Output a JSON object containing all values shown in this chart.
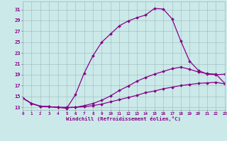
{
  "xlabel": "Windchill (Refroidissement éolien,°C)",
  "background_color": "#cbe9e9",
  "line_color": "#880088",
  "xlim": [
    0,
    23
  ],
  "ylim": [
    12.5,
    32.5
  ],
  "xticks": [
    0,
    1,
    2,
    3,
    4,
    5,
    6,
    7,
    8,
    9,
    10,
    11,
    12,
    13,
    14,
    15,
    16,
    17,
    18,
    19,
    20,
    21,
    22,
    23
  ],
  "yticks": [
    13,
    15,
    17,
    19,
    21,
    23,
    25,
    27,
    29,
    31
  ],
  "curve1_x": [
    0,
    1,
    2,
    3,
    4,
    5,
    6,
    7,
    8,
    9,
    10,
    11,
    12,
    13,
    14,
    15,
    16,
    17,
    18,
    19,
    20,
    21,
    22,
    23
  ],
  "curve1_y": [
    14.7,
    13.7,
    13.2,
    13.1,
    13.0,
    13.0,
    13.0,
    13.1,
    13.3,
    13.6,
    14.0,
    14.4,
    14.8,
    15.2,
    15.7,
    16.0,
    16.4,
    16.7,
    17.0,
    17.2,
    17.4,
    17.5,
    17.6,
    17.3
  ],
  "curve2_x": [
    0,
    1,
    2,
    3,
    4,
    5,
    6,
    7,
    8,
    9,
    10,
    11,
    12,
    13,
    14,
    15,
    16,
    17,
    18,
    19,
    20,
    21,
    22,
    23
  ],
  "curve2_y": [
    14.7,
    13.7,
    13.2,
    13.1,
    13.0,
    12.8,
    15.3,
    19.3,
    22.5,
    25.0,
    26.5,
    28.0,
    28.9,
    29.5,
    30.0,
    31.2,
    31.1,
    29.3,
    25.2,
    21.5,
    19.8,
    19.1,
    19.0,
    19.1
  ],
  "curve3_x": [
    0,
    1,
    2,
    3,
    4,
    5,
    6,
    7,
    8,
    9,
    10,
    11,
    12,
    13,
    14,
    15,
    16,
    17,
    18,
    19,
    20,
    21,
    22,
    23
  ],
  "curve3_y": [
    14.7,
    13.7,
    13.2,
    13.1,
    13.0,
    12.9,
    13.0,
    13.3,
    13.7,
    14.3,
    15.1,
    16.1,
    16.9,
    17.8,
    18.5,
    19.1,
    19.6,
    20.1,
    20.4,
    20.0,
    19.5,
    19.2,
    19.1,
    17.4
  ],
  "grid_color": "#9cbaba",
  "marker": "D",
  "markersize": 2.0,
  "linewidth": 0.9
}
